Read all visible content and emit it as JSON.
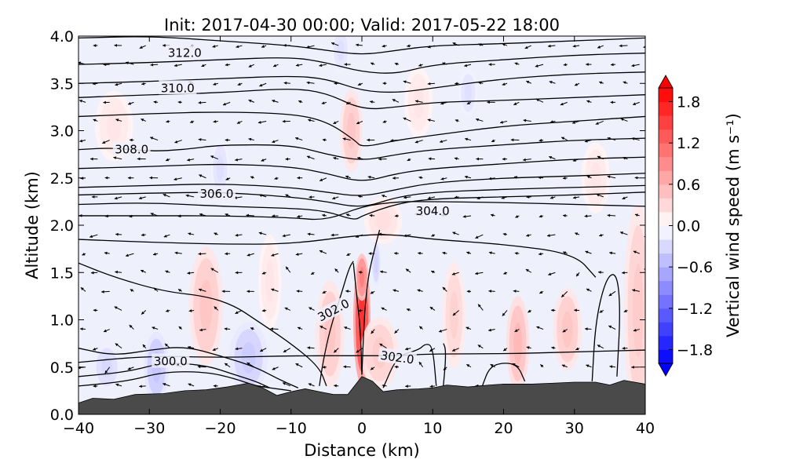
{
  "chart_data": {
    "type": "heatmap",
    "title": "Init: 2017-04-30 00:00; Valid: 2017-05-22 18:00",
    "xlabel": "Distance (km)",
    "ylabel": "Altitude (km)",
    "xlim": [
      -40,
      40
    ],
    "ylim": [
      0,
      4
    ],
    "x_ticks": [
      -40,
      -30,
      -20,
      -10,
      0,
      10,
      20,
      30,
      40
    ],
    "x_tick_labels": [
      "−40",
      "−30",
      "−20",
      "−10",
      "0",
      "10",
      "20",
      "30",
      "40"
    ],
    "y_ticks": [
      0,
      0.5,
      1.0,
      1.5,
      2.0,
      2.5,
      3.0,
      3.5,
      4.0
    ],
    "y_tick_labels": [
      "0.0",
      "0.5",
      "1.0",
      "1.5",
      "2.0",
      "2.5",
      "3.0",
      "3.5",
      "4.0"
    ],
    "colorbar": {
      "label": "Vertical wind speed (m s⁻¹)",
      "range": [
        -2.0,
        2.0
      ],
      "extend": "both",
      "ticks": [
        1.8,
        1.2,
        0.6,
        0.0,
        -0.6,
        -1.2,
        -1.8
      ],
      "tick_labels": [
        "1.8",
        "1.2",
        "0.6",
        "0.0",
        "−0.6",
        "−1.2",
        "−1.8"
      ],
      "colormap": "bwr",
      "color_low": "#0000ff",
      "color_mid": "#ffffff",
      "color_high": "#ff0000"
    },
    "terrain": {
      "color": "#4a4a4a",
      "x": [
        -40,
        -38,
        -35,
        -32,
        -28,
        -25,
        -22,
        -19,
        -16,
        -14,
        -12,
        -10,
        -8,
        -6,
        -4,
        -2,
        0,
        1.5,
        3,
        5,
        8,
        10,
        12,
        15,
        18,
        20,
        24,
        27,
        30,
        33,
        35,
        37,
        40
      ],
      "y": [
        0.12,
        0.17,
        0.16,
        0.21,
        0.22,
        0.25,
        0.26,
        0.29,
        0.33,
        0.28,
        0.2,
        0.24,
        0.27,
        0.24,
        0.21,
        0.21,
        0.4,
        0.35,
        0.24,
        0.26,
        0.27,
        0.28,
        0.31,
        0.29,
        0.31,
        0.32,
        0.32,
        0.33,
        0.34,
        0.34,
        0.31,
        0.36,
        0.32
      ]
    },
    "theta_contours": [
      {
        "x": [
          -40,
          -30,
          -20,
          -10,
          0,
          5,
          10,
          20,
          30,
          40
        ],
        "y": [
          0.55,
          0.62,
          0.6,
          0.62,
          0.62,
          0.62,
          0.64,
          0.64,
          0.66,
          0.68
        ]
      },
      {
        "x": [
          -40,
          -33,
          -28,
          -22,
          -18,
          -15,
          -13
        ],
        "y": [
          0.4,
          0.45,
          0.55,
          0.52,
          0.42,
          0.35,
          0.28
        ]
      },
      {
        "x": [
          -40,
          -33,
          -28,
          -22,
          -18,
          -15,
          -12,
          -10
        ],
        "y": [
          0.3,
          0.35,
          0.45,
          0.45,
          0.38,
          0.3,
          0.27,
          0.25
        ]
      },
      {
        "x": [
          -40,
          -35,
          -30,
          -25,
          -20,
          -15,
          -12,
          -9
        ],
        "y": [
          0.7,
          0.62,
          0.68,
          0.72,
          0.62,
          0.5,
          0.38,
          0.28
        ]
      },
      {
        "x": [
          -40,
          -35,
          -28,
          -22,
          -18,
          -15,
          -10,
          -6,
          -5
        ],
        "y": [
          1.6,
          1.45,
          1.3,
          1.25,
          1.15,
          1.0,
          0.75,
          0.5,
          0.3
        ]
      },
      {
        "x": [
          -6,
          -5.5,
          -4.5,
          -3,
          -1.8,
          -1.2
        ],
        "y": [
          0.3,
          0.55,
          0.9,
          1.25,
          1.55,
          1.62
        ]
      },
      {
        "x": [
          0,
          0.2,
          0.5,
          1,
          1.8,
          2.5
        ],
        "y": [
          0.42,
          0.8,
          1.2,
          1.5,
          1.75,
          1.95
        ]
      },
      {
        "x": [
          0,
          -0.2,
          -0.8,
          -1.2
        ],
        "y": [
          0.42,
          0.9,
          1.3,
          1.6
        ]
      },
      {
        "x": [
          3,
          5,
          8,
          9,
          10,
          10.5
        ],
        "y": [
          0.28,
          0.62,
          0.68,
          0.75,
          0.72,
          0.3
        ]
      },
      {
        "x": [
          11.5,
          11.8,
          11.8,
          11.5
        ],
        "y": [
          0.3,
          0.55,
          0.7,
          0.75
        ]
      },
      {
        "x": [
          17,
          18,
          20,
          22,
          23
        ],
        "y": [
          0.3,
          0.5,
          0.55,
          0.52,
          0.35
        ]
      },
      {
        "x": [
          32.5,
          33,
          34.5,
          36,
          36.5,
          36
        ],
        "y": [
          0.35,
          1.0,
          1.45,
          1.5,
          1.1,
          0.4
        ]
      },
      {
        "x": [
          -40,
          -30,
          -20,
          -10,
          0,
          5,
          10,
          20,
          30,
          33
        ],
        "y": [
          1.85,
          1.82,
          1.8,
          1.8,
          1.9,
          1.9,
          1.85,
          1.8,
          1.7,
          1.45
        ]
      },
      {
        "x": [
          -40,
          -30,
          -20,
          -10,
          -5,
          0,
          5,
          10,
          20,
          30,
          40
        ],
        "y": [
          2.1,
          2.1,
          2.1,
          2.08,
          2.05,
          2.2,
          2.25,
          2.25,
          2.24,
          2.22,
          2.2
        ]
      },
      {
        "x": [
          -40,
          -30,
          -20,
          -10,
          -5,
          -1,
          0,
          5,
          10,
          20,
          30,
          40
        ],
        "y": [
          2.22,
          2.24,
          2.2,
          2.18,
          2.15,
          2.05,
          2.1,
          2.23,
          2.28,
          2.3,
          2.32,
          2.35
        ]
      },
      {
        "x": [
          -40,
          -30,
          -20,
          -10,
          -5,
          0,
          5,
          10,
          20,
          30,
          40
        ],
        "y": [
          2.32,
          2.34,
          2.35,
          2.3,
          2.25,
          2.18,
          2.3,
          2.35,
          2.38,
          2.4,
          2.42
        ]
      },
      {
        "x": [
          -40,
          -30,
          -20,
          -10,
          -5,
          0,
          5,
          10,
          20,
          30,
          40
        ],
        "y": [
          2.4,
          2.42,
          2.44,
          2.4,
          2.35,
          2.3,
          2.38,
          2.45,
          2.5,
          2.52,
          2.55
        ]
      },
      {
        "x": [
          -40,
          -30,
          -20,
          -10,
          -5,
          0,
          5,
          10,
          20,
          30,
          40
        ],
        "y": [
          2.6,
          2.62,
          2.65,
          2.62,
          2.55,
          2.45,
          2.55,
          2.6,
          2.65,
          2.7,
          2.72
        ]
      },
      {
        "x": [
          -40,
          -35,
          -30,
          -25,
          -20,
          -10,
          -5,
          0,
          5,
          10,
          20,
          30,
          40
        ],
        "y": [
          2.8,
          2.82,
          2.78,
          2.8,
          2.85,
          2.85,
          2.75,
          2.68,
          2.75,
          2.8,
          2.85,
          2.9,
          2.92
        ]
      },
      {
        "x": [
          -40,
          -30,
          -20,
          -10,
          -5,
          -1,
          0,
          5,
          10,
          20,
          30,
          40
        ],
        "y": [
          3.15,
          3.18,
          3.2,
          3.18,
          3.1,
          2.9,
          2.82,
          2.9,
          2.95,
          3.05,
          3.1,
          3.15
        ]
      },
      {
        "x": [
          -40,
          -30,
          -20,
          -10,
          -5,
          0,
          5,
          10,
          20,
          30,
          40
        ],
        "y": [
          3.35,
          3.38,
          3.4,
          3.45,
          3.4,
          3.22,
          3.25,
          3.3,
          3.32,
          3.35,
          3.38
        ]
      },
      {
        "x": [
          -40,
          -30,
          -20,
          -10,
          -5,
          0,
          5,
          10,
          20,
          30,
          40
        ],
        "y": [
          3.5,
          3.52,
          3.55,
          3.58,
          3.55,
          3.42,
          3.4,
          3.45,
          3.55,
          3.6,
          3.62
        ]
      },
      {
        "x": [
          -40,
          -30,
          -20,
          -10,
          -5,
          0,
          5,
          10,
          20,
          30,
          40
        ],
        "y": [
          3.7,
          3.72,
          3.75,
          3.78,
          3.72,
          3.62,
          3.6,
          3.7,
          3.75,
          3.8,
          3.82
        ]
      },
      {
        "x": [
          -40,
          -30,
          -20,
          -10,
          -5,
          0,
          5,
          10,
          20,
          30,
          40
        ],
        "y": [
          3.98,
          4.0,
          3.95,
          3.9,
          3.85,
          3.8,
          3.85,
          3.9,
          3.92,
          3.95,
          3.98
        ]
      }
    ],
    "contour_labels": [
      {
        "text": "312.0",
        "x": -25,
        "y": 3.82
      },
      {
        "text": "310.0",
        "x": -26,
        "y": 3.45
      },
      {
        "text": "308.0",
        "x": -32.5,
        "y": 2.8
      },
      {
        "text": "306.0",
        "x": -20.5,
        "y": 2.33
      },
      {
        "text": "304.0",
        "x": 10,
        "y": 2.15
      },
      {
        "text": "302.0",
        "x": -4,
        "y": 1.1
      },
      {
        "text": "302.0",
        "x": 5,
        "y": 0.6
      },
      {
        "text": "300.0",
        "x": -27,
        "y": 0.56
      }
    ],
    "w_features": [
      {
        "x": 0,
        "y": 1.0,
        "rx": 0.9,
        "ry": 0.55,
        "w": 1.6
      },
      {
        "x": 0,
        "y": 1.45,
        "rx": 0.7,
        "ry": 0.2,
        "w": 1.0
      },
      {
        "x": -1.5,
        "y": 3.0,
        "rx": 1.2,
        "ry": 0.35,
        "w": 0.45
      },
      {
        "x": 2.5,
        "y": 0.65,
        "rx": 2.0,
        "ry": 0.3,
        "w": 0.4
      },
      {
        "x": -4.5,
        "y": 0.85,
        "rx": 1.5,
        "ry": 0.45,
        "w": 0.45
      },
      {
        "x": -22,
        "y": 1.15,
        "rx": 1.8,
        "ry": 0.5,
        "w": 0.45
      },
      {
        "x": -29,
        "y": 0.5,
        "rx": 1.3,
        "ry": 0.3,
        "w": -0.45
      },
      {
        "x": -16,
        "y": 0.6,
        "rx": 2.0,
        "ry": 0.3,
        "w": -0.4
      },
      {
        "x": -36,
        "y": 0.5,
        "rx": 1.5,
        "ry": 0.2,
        "w": -0.3
      },
      {
        "x": 2,
        "y": 1.6,
        "rx": 0.5,
        "ry": 0.2,
        "w": -0.35
      },
      {
        "x": 22,
        "y": 0.75,
        "rx": 1.2,
        "ry": 0.4,
        "w": 0.55
      },
      {
        "x": 29,
        "y": 0.9,
        "rx": 1.5,
        "ry": 0.35,
        "w": 0.45
      },
      {
        "x": 13,
        "y": 1.05,
        "rx": 1.2,
        "ry": 0.45,
        "w": 0.35
      },
      {
        "x": 39,
        "y": 1.1,
        "rx": 1.5,
        "ry": 0.9,
        "w": 0.4
      },
      {
        "x": -13,
        "y": 1.4,
        "rx": 1.2,
        "ry": 0.4,
        "w": 0.2
      },
      {
        "x": -35,
        "y": 3.05,
        "rx": 2.0,
        "ry": 0.3,
        "w": 0.2
      },
      {
        "x": 3,
        "y": 2.05,
        "rx": 2.0,
        "ry": 0.2,
        "w": 0.25
      },
      {
        "x": 8,
        "y": 3.3,
        "rx": 1.5,
        "ry": 0.3,
        "w": 0.2
      },
      {
        "x": 15,
        "y": 3.4,
        "rx": 1.0,
        "ry": 0.2,
        "w": -0.25
      },
      {
        "x": -20,
        "y": 2.6,
        "rx": 1.0,
        "ry": 0.25,
        "w": -0.25
      },
      {
        "x": 33,
        "y": 2.5,
        "rx": 1.5,
        "ry": 0.3,
        "w": 0.2
      },
      {
        "x": -3,
        "y": 3.85,
        "rx": 1.0,
        "ry": 0.2,
        "w": -0.25
      }
    ],
    "wind_vectors": {
      "u_mean": -1.0,
      "note_units": "m s-1 (qualitative)"
    }
  }
}
